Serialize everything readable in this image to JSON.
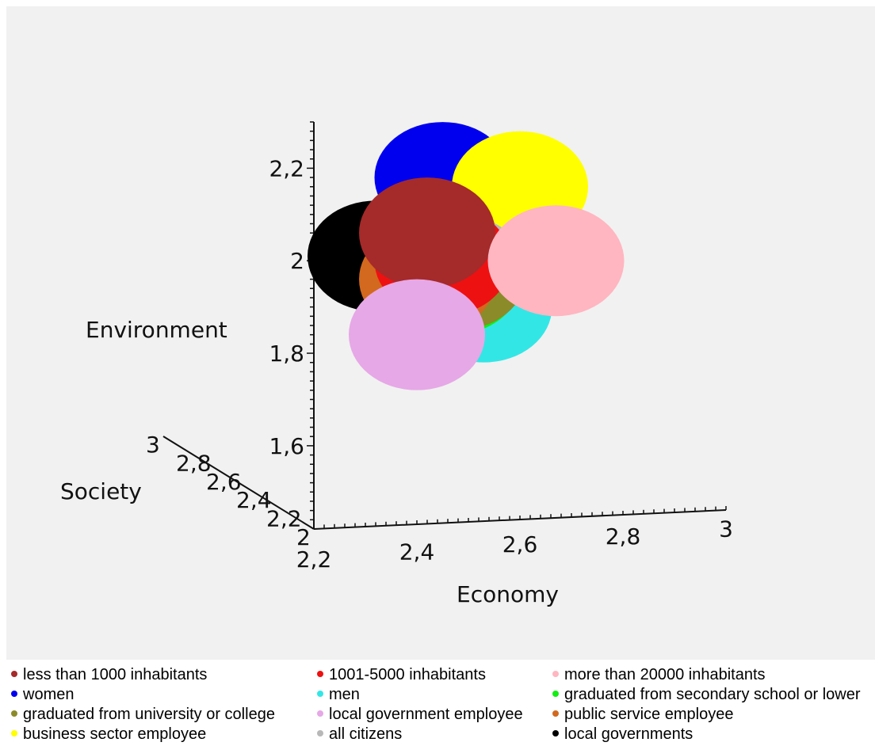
{
  "chart_data": {
    "type": "scatter",
    "title": "",
    "axes": {
      "x": {
        "label": "Economy",
        "range": [
          2.2,
          3.0
        ],
        "ticks": [
          "2,2",
          "2,4",
          "2,6",
          "2,8",
          "3"
        ]
      },
      "y": {
        "label": "Environment",
        "range": [
          1.42,
          2.3
        ],
        "ticks": [
          "1,6",
          "1,8",
          "2",
          "2,2"
        ]
      },
      "z": {
        "label": "Society",
        "range": [
          2.0,
          3.0
        ],
        "ticks": [
          "3",
          "2,8",
          "2,6",
          "2,4",
          "2,2",
          "2"
        ]
      }
    },
    "series": [
      {
        "name": "less than 1000 inhabitants",
        "color": "#a52a2a",
        "x": 2.42,
        "y": 2.06
      },
      {
        "name": "1001-5000 inhabitants",
        "color": "#ee1111",
        "x": 2.45,
        "y": 2.0
      },
      {
        "name": "more than 20000 inhabitants",
        "color": "#ffb6c1",
        "x": 2.67,
        "y": 2.0
      },
      {
        "name": "women",
        "color": "#0000ee",
        "x": 2.45,
        "y": 2.18
      },
      {
        "name": "men",
        "color": "#33e6e6",
        "x": 2.53,
        "y": 1.9
      },
      {
        "name": "graduated from secondary school or lower",
        "color": "#11ee11",
        "x": 2.47,
        "y": 1.96
      },
      {
        "name": "graduated from university or college",
        "color": "#8b8b2a",
        "x": 2.48,
        "y": 1.97
      },
      {
        "name": "local government employee",
        "color": "#e6a8e6",
        "x": 2.4,
        "y": 1.84
      },
      {
        "name": "public service employee",
        "color": "#d2691e",
        "x": 2.42,
        "y": 1.96
      },
      {
        "name": "business sector employee",
        "color": "#ffff00",
        "x": 2.6,
        "y": 2.16
      },
      {
        "name": "all citizens",
        "color": "#b8b8b8",
        "x": 2.48,
        "y": 1.98
      },
      {
        "name": "local governments",
        "color": "#000000",
        "x": 2.32,
        "y": 2.01
      }
    ],
    "legend": {
      "position": "bottom",
      "columns": [
        [
          "less than 1000 inhabitants",
          "women",
          "graduated from university or college",
          "business sector employee"
        ],
        [
          "1001-5000 inhabitants",
          "men",
          "local government employee",
          "all citizens"
        ],
        [
          "more than 20000 inhabitants",
          "graduated from secondary school or lower",
          "public service employee",
          "local governments"
        ]
      ]
    },
    "grid": false
  }
}
